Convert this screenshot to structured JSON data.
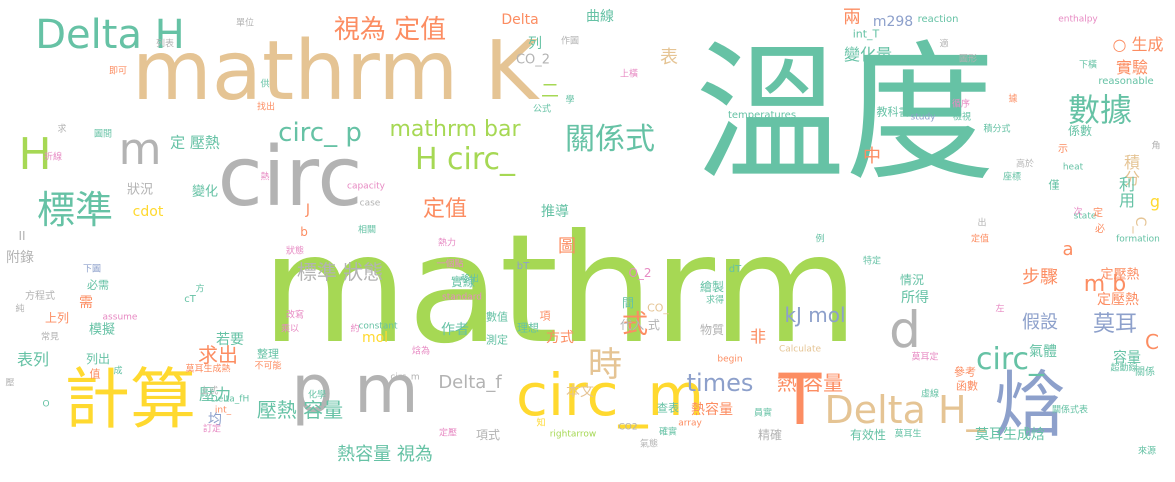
{
  "palette": {
    "green": "#a6d854",
    "teal": "#66c2a5",
    "tan": "#e5c494",
    "orange": "#fc8d62",
    "gray": "#b3b3b3",
    "blue": "#8da0cb",
    "pink": "#e78ac3",
    "yellow": "#ffd92f"
  },
  "words": [
    {
      "text": "mathrm",
      "color": "green"
    },
    {
      "text": "溫度",
      "color": "teal"
    },
    {
      "text": "mathrm K",
      "color": "tan"
    },
    {
      "text": "circ",
      "color": "gray"
    },
    {
      "text": "計算",
      "color": "yellow"
    },
    {
      "text": "p m",
      "color": "gray"
    },
    {
      "text": "circ_m",
      "color": "yellow"
    },
    {
      "text": "T",
      "color": "orange"
    },
    {
      "text": "Delta H",
      "color": "teal"
    },
    {
      "text": "焓",
      "color": "blue"
    },
    {
      "text": "Delta H_",
      "color": "tan"
    },
    {
      "text": "H",
      "color": "green"
    },
    {
      "text": "m",
      "color": "gray"
    },
    {
      "text": "標準",
      "color": "teal"
    },
    {
      "text": "視為 定值",
      "color": "orange"
    },
    {
      "text": "數據",
      "color": "teal"
    },
    {
      "text": "關係式",
      "color": "teal"
    },
    {
      "text": "H circ_",
      "color": "green"
    },
    {
      "text": "circ_ p",
      "color": "teal"
    },
    {
      "text": "mathrm bar",
      "color": "green"
    },
    {
      "text": "d",
      "color": "gray"
    },
    {
      "text": "時",
      "color": "tan"
    },
    {
      "text": "circ_",
      "color": "teal"
    },
    {
      "text": "times",
      "color": "blue"
    },
    {
      "text": "定值",
      "color": "orange"
    },
    {
      "text": "標準 狀態",
      "color": "gray"
    },
    {
      "text": "壓熱 容量",
      "color": "teal"
    },
    {
      "text": "熱 容量",
      "color": "orange"
    },
    {
      "text": "熱容量 視為",
      "color": "teal"
    },
    {
      "text": "Delta_f",
      "color": "gray"
    },
    {
      "text": "求出",
      "color": "orange"
    },
    {
      "text": "莫耳",
      "color": "blue"
    },
    {
      "text": "m b",
      "color": "orange"
    },
    {
      "text": "kJ mol",
      "color": "blue"
    },
    {
      "text": "式",
      "color": "orange"
    },
    {
      "text": "圖",
      "color": "orange"
    },
    {
      "text": "中",
      "color": "orange"
    },
    {
      "text": "表",
      "color": "tan"
    },
    {
      "text": "步驟",
      "color": "orange"
    },
    {
      "text": "假設",
      "color": "blue"
    },
    {
      "text": "積分",
      "color": "tan"
    },
    {
      "text": "利用",
      "color": "teal"
    },
    {
      "text": "變化量",
      "color": "teal"
    },
    {
      "text": "兩",
      "color": "orange"
    },
    {
      "text": "m298",
      "color": "blue"
    },
    {
      "text": "int_T",
      "color": "teal"
    },
    {
      "text": "Delta",
      "color": "orange"
    },
    {
      "text": "○ 生成",
      "color": "orange"
    },
    {
      "text": "實驗",
      "color": "orange"
    },
    {
      "text": "定壓熱",
      "color": "orange"
    },
    {
      "text": "cdot",
      "color": "yellow"
    },
    {
      "text": "推導",
      "color": "teal"
    },
    {
      "text": "所得",
      "color": "teal"
    },
    {
      "text": "氣體",
      "color": "teal"
    },
    {
      "text": "容量",
      "color": "teal"
    },
    {
      "text": "C",
      "color": "orange"
    },
    {
      "text": "a",
      "color": "orange"
    },
    {
      "text": "代入 式",
      "color": "gray"
    },
    {
      "text": "非",
      "color": "orange"
    },
    {
      "text": "mol",
      "color": "yellow"
    },
    {
      "text": "若要",
      "color": "teal"
    },
    {
      "text": "作者",
      "color": "teal"
    },
    {
      "text": "熱容量",
      "color": "orange"
    },
    {
      "text": "本文",
      "color": "tan"
    },
    {
      "text": "方式",
      "color": "orange"
    },
    {
      "text": "莫耳生成焓",
      "color": "teal"
    },
    {
      "text": "有效性",
      "color": "teal"
    },
    {
      "text": "精確",
      "color": "gray"
    },
    {
      "text": "項式",
      "color": "gray"
    },
    {
      "text": "壓力",
      "color": "teal"
    },
    {
      "text": "均",
      "color": "blue"
    },
    {
      "text": "定壓熱",
      "color": "orange"
    },
    {
      "text": "附錄",
      "color": "gray"
    },
    {
      "text": "表列",
      "color": "teal"
    },
    {
      "text": "上列",
      "color": "orange"
    },
    {
      "text": "模擬",
      "color": "teal"
    },
    {
      "text": "狀況",
      "color": "gray"
    },
    {
      "text": "變化",
      "color": "teal"
    },
    {
      "text": "定 壓熱",
      "color": "teal"
    },
    {
      "text": "定值",
      "color": "orange"
    },
    {
      "text": "列",
      "color": "teal"
    },
    {
      "text": "二",
      "color": "green"
    },
    {
      "text": "CO_2",
      "color": "gray"
    },
    {
      "text": "曲線",
      "color": "teal"
    },
    {
      "text": "作圖",
      "color": "gray"
    },
    {
      "text": "單位",
      "color": "gray"
    },
    {
      "text": "列表",
      "color": "gray"
    },
    {
      "text": "即可",
      "color": "orange"
    },
    {
      "text": "reaction",
      "color": "teal"
    },
    {
      "text": "enthalpy",
      "color": "pink"
    },
    {
      "text": "reasonable",
      "color": "teal"
    },
    {
      "text": "temperatures",
      "color": "teal"
    },
    {
      "text": "study",
      "color": "blue"
    },
    {
      "text": "教科書",
      "color": "teal"
    },
    {
      "text": "係數",
      "color": "teal"
    },
    {
      "text": "heat",
      "color": "teal"
    },
    {
      "text": "state",
      "color": "teal"
    },
    {
      "text": "formation",
      "color": "teal"
    },
    {
      "text": "capacity",
      "color": "pink"
    },
    {
      "text": "case",
      "color": "gray"
    },
    {
      "text": "standard",
      "color": "pink"
    },
    {
      "text": "assume",
      "color": "pink"
    },
    {
      "text": "constant",
      "color": "teal"
    },
    {
      "text": "Calculate",
      "color": "tan"
    },
    {
      "text": "rightarrow",
      "color": "green"
    },
    {
      "text": "begin",
      "color": "orange"
    },
    {
      "text": "array",
      "color": "orange"
    },
    {
      "text": "dT",
      "color": "teal"
    },
    {
      "text": "bT",
      "color": "blue"
    },
    {
      "text": "cT",
      "color": "teal"
    },
    {
      "text": "J",
      "color": "orange"
    },
    {
      "text": "b",
      "color": "orange"
    },
    {
      "text": "g",
      "color": "yellow"
    },
    {
      "text": "C_",
      "color": "tan"
    },
    {
      "text": "O_2",
      "color": "pink"
    },
    {
      "text": "CO_",
      "color": "tan"
    },
    {
      "text": "CO2",
      "color": "gray"
    },
    {
      "text": "數值",
      "color": "teal"
    },
    {
      "text": "理想",
      "color": "teal"
    },
    {
      "text": "測定",
      "color": "teal"
    },
    {
      "text": "項",
      "color": "orange"
    },
    {
      "text": "間",
      "color": "teal"
    },
    {
      "text": "繪製",
      "color": "teal"
    },
    {
      "text": "實線",
      "color": "teal"
    },
    {
      "text": "情況",
      "color": "teal"
    },
    {
      "text": "物質",
      "color": "gray"
    },
    {
      "text": "參考",
      "color": "orange"
    },
    {
      "text": "函數",
      "color": "orange"
    },
    {
      "text": "僅",
      "color": "teal"
    },
    {
      "text": "示",
      "color": "orange"
    },
    {
      "text": "座標",
      "color": "teal"
    },
    {
      "text": "下圖",
      "color": "blue"
    },
    {
      "text": "必需",
      "color": "teal"
    },
    {
      "text": "需",
      "color": "orange"
    },
    {
      "text": "方程式",
      "color": "gray"
    },
    {
      "text": "純",
      "color": "gray"
    },
    {
      "text": "常見",
      "color": "gray"
    },
    {
      "text": "列出",
      "color": "teal"
    },
    {
      "text": "值",
      "color": "orange"
    },
    {
      "text": "成",
      "color": "teal"
    },
    {
      "text": "整理",
      "color": "teal"
    },
    {
      "text": "改寫",
      "color": "pink"
    },
    {
      "text": "乘以",
      "color": "pink"
    },
    {
      "text": "不可能",
      "color": "orange"
    },
    {
      "text": "焓為",
      "color": "pink"
    },
    {
      "text": "化學",
      "color": "teal"
    },
    {
      "text": "知",
      "color": "yellow"
    },
    {
      "text": "查表",
      "color": "teal"
    },
    {
      "text": "確實",
      "color": "teal"
    },
    {
      "text": "員實",
      "color": "teal"
    },
    {
      "text": "莫耳生",
      "color": "teal"
    },
    {
      "text": "莫耳定",
      "color": "pink"
    },
    {
      "text": "關係式表",
      "color": "teal"
    },
    {
      "text": "關係",
      "color": "teal"
    },
    {
      "text": "來源",
      "color": "teal"
    },
    {
      "text": "虛線",
      "color": "teal"
    },
    {
      "text": "壓",
      "color": "gray"
    },
    {
      "text": "求",
      "color": "gray"
    },
    {
      "text": "折線",
      "color": "pink"
    },
    {
      "text": "圖間",
      "color": "teal"
    },
    {
      "text": "公式",
      "color": "teal"
    },
    {
      "text": "學",
      "color": "teal"
    },
    {
      "text": "供",
      "color": "teal"
    },
    {
      "text": "找出",
      "color": "orange"
    },
    {
      "text": "圖形",
      "color": "gray"
    },
    {
      "text": "上橫",
      "color": "pink"
    },
    {
      "text": "下橫",
      "color": "teal"
    },
    {
      "text": "積分式",
      "color": "teal"
    },
    {
      "text": "循序",
      "color": "pink"
    },
    {
      "text": "檢視",
      "color": "teal"
    },
    {
      "text": "一個點",
      "color": "pink"
    },
    {
      "text": "移出",
      "color": "teal"
    },
    {
      "text": "求得",
      "color": "teal"
    },
    {
      "text": "特定",
      "color": "teal"
    },
    {
      "text": "例",
      "color": "teal"
    },
    {
      "text": "相關",
      "color": "teal"
    },
    {
      "text": "熱力",
      "color": "pink"
    },
    {
      "text": "狀態",
      "color": "pink"
    },
    {
      "text": "約",
      "color": "pink"
    },
    {
      "text": "circ_m",
      "color": "gray"
    },
    {
      "text": "Delta_fH",
      "color": "teal"
    },
    {
      "text": "莫耳生成熱",
      "color": "orange"
    },
    {
      "text": "上式",
      "color": "gray"
    },
    {
      "text": "int_",
      "color": "orange"
    },
    {
      "text": "訂定",
      "color": "pink"
    },
    {
      "text": "定壓",
      "color": "pink"
    },
    {
      "text": "氣態",
      "color": "gray"
    },
    {
      "text": "角",
      "color": "gray"
    },
    {
      "text": "次",
      "color": "pink"
    },
    {
      "text": "定",
      "color": "orange"
    },
    {
      "text": "必",
      "color": "orange"
    },
    {
      "text": "出",
      "color": "gray"
    },
    {
      "text": "超動線",
      "color": "teal"
    },
    {
      "text": "高於",
      "color": "gray"
    },
    {
      "text": "左",
      "color": "pink"
    },
    {
      "text": "熱",
      "color": "pink"
    },
    {
      "text": "據",
      "color": "orange"
    },
    {
      "text": "方",
      "color": "teal"
    },
    {
      "text": "II",
      "color": "gray"
    },
    {
      "text": "O",
      "color": "teal"
    },
    {
      "text": "適",
      "color": "gray"
    }
  ]
}
